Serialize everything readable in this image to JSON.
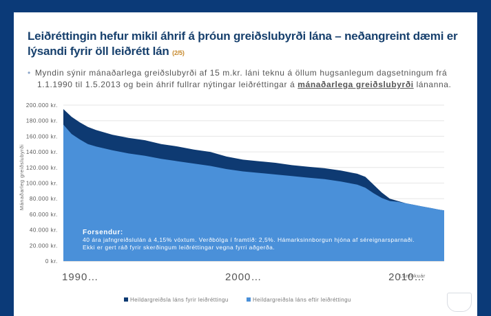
{
  "title": {
    "main": "Leiðréttingin hefur mikil áhrif á þróun greiðslubyrði lána – neðangreint dæmi er lýsandi fyrir öll leiðrétt lán",
    "page": "(2/5)"
  },
  "bullet": {
    "part1": "Myndin sýnir mánaðarlega greiðslubyrði af 15 m.kr. láni teknu á öllum hugsanlegum dagsetningum frá",
    "part2": "1.1.1990 til 1.5.2013 og bein áhrif fullrar nýtingar leiðréttingar á",
    "emph": "mánaðarlega greiðslubyrði",
    "part3": " lánanna."
  },
  "notes": {
    "heading": "Forsendur:",
    "line1": "40 ára jafngreiðslulán á 4,15% vöxtum. Verðbólga í framtíð: 2,5%.  Hámarksinnborgun hjóna af séreignarsparnaði.",
    "line2": "Ekki er gert ráð fyrir skerðingum leiðréttingar vegna fyrri aðgerða."
  },
  "chart_data": {
    "type": "area",
    "ylabel": "Mánaðarleg greiðslubyrði",
    "xlabel": "Lántökuár",
    "ylim": [
      0,
      200000
    ],
    "xlim": [
      1990,
      2013.33
    ],
    "y_ticks": [
      "0 kr.",
      "20.000 kr.",
      "40.000 kr.",
      "60.000 kr.",
      "80.000 kr.",
      "100.000 kr.",
      "120.000 kr.",
      "140.000 kr.",
      "160.000 kr.",
      "180.000 kr.",
      "200.000 kr."
    ],
    "x_ticks": [
      {
        "x": 1990,
        "label": "1990…"
      },
      {
        "x": 2000,
        "label": "2000…"
      },
      {
        "x": 2010,
        "label": "2010…"
      }
    ],
    "grid": true,
    "legend_position": "bottom",
    "series": [
      {
        "name": "Heildargreiðsla láns fyrir leiðréttingu",
        "color": "#0e3a72",
        "x": [
          1990,
          1990.5,
          1991,
          1991.5,
          1992,
          1993,
          1994,
          1995,
          1996,
          1997,
          1998,
          1999,
          2000,
          2001,
          2002,
          2003,
          2004,
          2005,
          2006,
          2007,
          2008,
          2008.5,
          2009,
          2009.5,
          2010,
          2010.5,
          2011,
          2011.5,
          2012,
          2012.5,
          2013,
          2013.33
        ],
        "values": [
          195000,
          185000,
          178000,
          172000,
          168000,
          162000,
          158000,
          155000,
          150000,
          147000,
          143000,
          140000,
          134000,
          130000,
          128000,
          126000,
          123000,
          121000,
          119000,
          116000,
          112000,
          108000,
          98000,
          88000,
          80000,
          77000,
          74000,
          72000,
          70000,
          68000,
          66000,
          65000
        ]
      },
      {
        "name": "Heildargreiðsla láns eftir leiðréttingu",
        "color": "#4a90d9",
        "x": [
          1990,
          1990.5,
          1991,
          1991.5,
          1992,
          1993,
          1994,
          1995,
          1996,
          1997,
          1998,
          1999,
          2000,
          2001,
          2002,
          2003,
          2004,
          2005,
          2006,
          2007,
          2008,
          2008.5,
          2009,
          2009.5,
          2010,
          2010.5,
          2011,
          2011.5,
          2012,
          2012.5,
          2013,
          2013.33
        ],
        "values": [
          175000,
          163000,
          156000,
          150000,
          147000,
          142000,
          138000,
          135000,
          131000,
          128000,
          125000,
          122000,
          118000,
          115000,
          113000,
          111000,
          109000,
          107000,
          105000,
          102000,
          98000,
          94000,
          87000,
          81000,
          77000,
          76000,
          74000,
          72000,
          70000,
          68000,
          66000,
          65000
        ]
      }
    ]
  }
}
